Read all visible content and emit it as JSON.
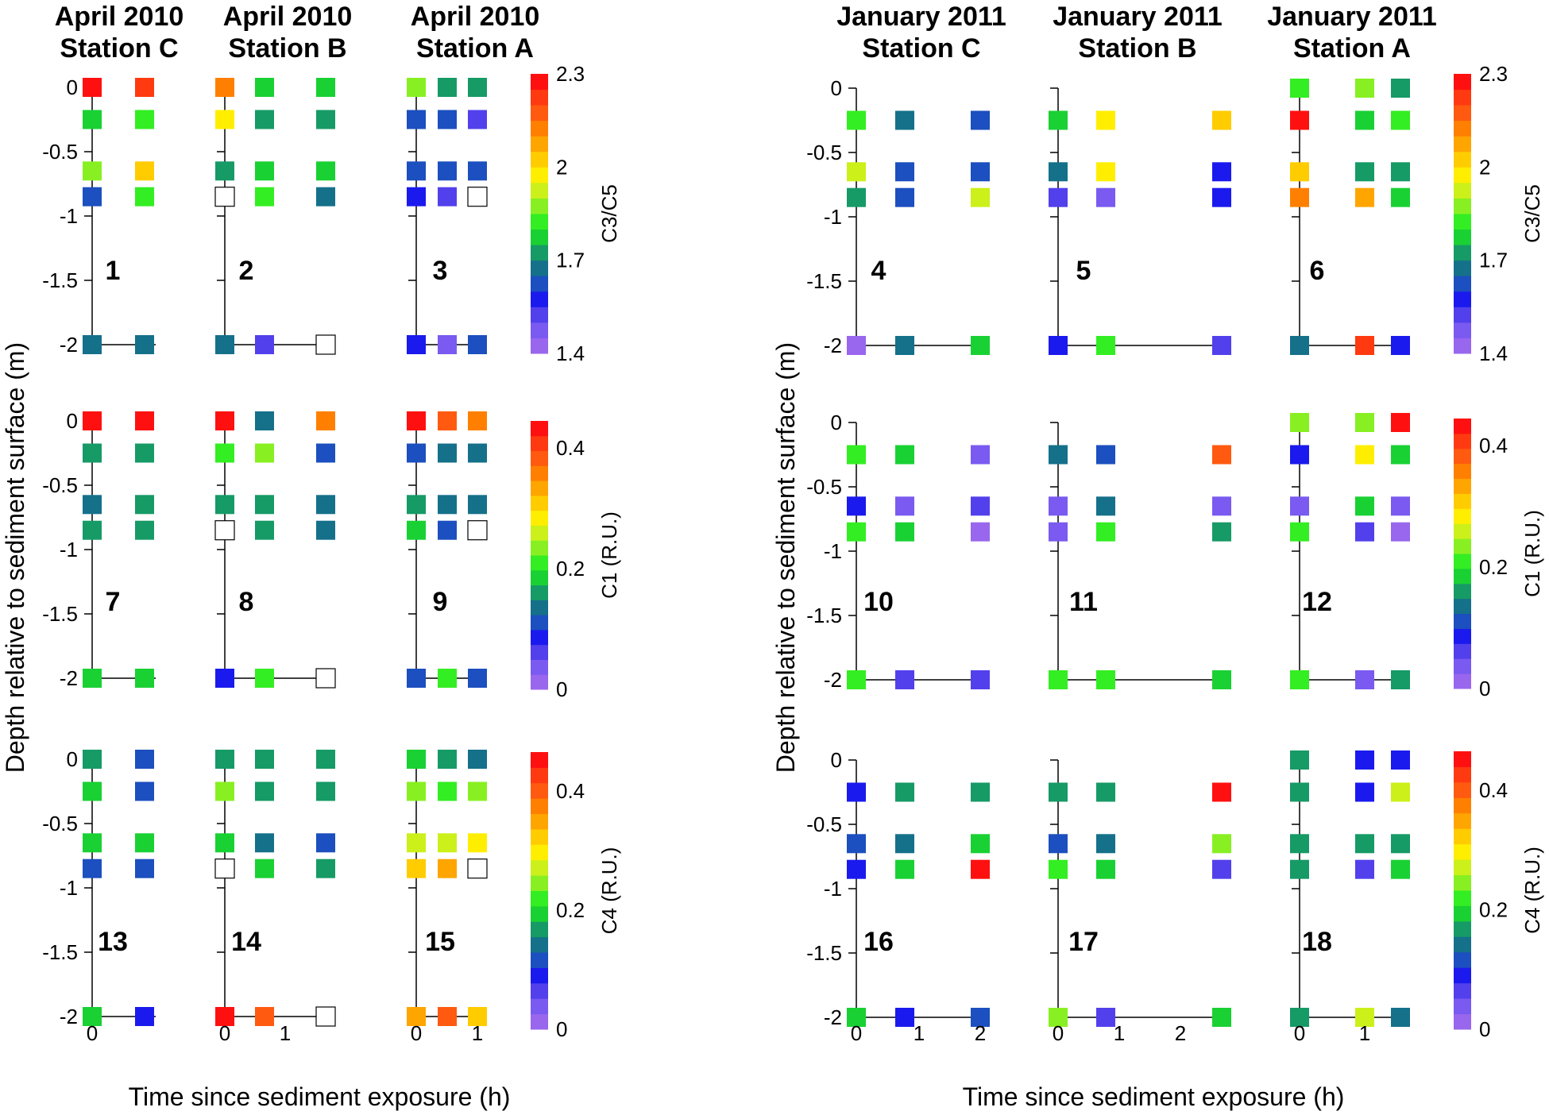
{
  "figure": {
    "ylabel_left": "Depth relative to sediment surface (m)",
    "ylabel_right": "Depth relative to sediment surface (m)",
    "xlabel_left": "Time since sediment exposure (h)",
    "xlabel_right": "Time since sediment exposure (h)"
  },
  "chart_data": {
    "type": "heatmap",
    "note": "18 panels of colour-coded squares; marker value is the colour-scale bin index (0 = lowest bin). null = open (no data) square.",
    "colormap_bins": [
      "#9966ee",
      "#7a5af0",
      "#5240ec",
      "#1a1aee",
      "#1c4fbf",
      "#15708a",
      "#169a66",
      "#19d133",
      "#33ee22",
      "#88f022",
      "#ccf01a",
      "#ffee00",
      "#ffcc00",
      "#ffa500",
      "#ff8000",
      "#ff5a10",
      "#ff3a10",
      "#ff1010"
    ],
    "column_headers": [
      {
        "line1": "April 2010",
        "line2": "Station C"
      },
      {
        "line1": "April 2010",
        "line2": "Station B"
      },
      {
        "line1": "April 2010",
        "line2": "Station A"
      },
      {
        "line1": "January 2011",
        "line2": "Station C"
      },
      {
        "line1": "January 2011",
        "line2": "Station B"
      },
      {
        "line1": "January 2011",
        "line2": "Station A"
      }
    ],
    "y_ticks": [
      "0",
      "-0.5",
      "-1",
      "-1.5",
      "-2"
    ],
    "ylim": [
      -2,
      0
    ],
    "depths": [
      0,
      -0.25,
      -0.65,
      -0.85,
      -2
    ],
    "x_tick_labels": [
      [
        "0"
      ],
      [
        "0",
        "1"
      ],
      [
        "0",
        "1"
      ],
      [
        "0",
        "1",
        "2"
      ],
      [
        "0",
        "1",
        "2"
      ],
      [
        "0",
        "1"
      ]
    ],
    "colorbars": [
      {
        "label": "C3/C5",
        "ticks": [
          "2.3",
          "2",
          "1.7",
          "1.4"
        ]
      },
      {
        "label": "C1 (R.U.)",
        "ticks": [
          "0.4",
          "0.2",
          "0"
        ]
      },
      {
        "label": "C4 (R.U.)",
        "ticks": [
          "0.4",
          "0.2",
          "0"
        ]
      }
    ],
    "panels": [
      {
        "label": "1",
        "title": "April 2010 Station C",
        "metric": "C3/C5",
        "values": [
          [
            17,
            null,
            16
          ],
          [
            7,
            null,
            8
          ],
          [
            9,
            null,
            12
          ],
          [
            4,
            null,
            8
          ],
          [
            5,
            null,
            5
          ]
        ]
      },
      {
        "label": "2",
        "title": "April 2010 Station B",
        "metric": "C3/C5",
        "values": [
          [
            14,
            7,
            7
          ],
          [
            11,
            6,
            6
          ],
          [
            6,
            7,
            7
          ],
          [
            null,
            8,
            5
          ],
          [
            5,
            2,
            null
          ]
        ]
      },
      {
        "label": "3",
        "title": "April 2010 Station A",
        "metric": "C3/C5",
        "values": [
          [
            9,
            6,
            6
          ],
          [
            4,
            4,
            2
          ],
          [
            4,
            4,
            4
          ],
          [
            3,
            2,
            null
          ],
          [
            3,
            1,
            4
          ]
        ]
      },
      {
        "label": "4",
        "title": "January 2011 Station C",
        "metric": "C3/C5",
        "values": [
          [
            null,
            null,
            null
          ],
          [
            8,
            5,
            4
          ],
          [
            10,
            4,
            4
          ],
          [
            6,
            4,
            10
          ],
          [
            0,
            5,
            7
          ]
        ]
      },
      {
        "label": "5",
        "title": "January 2011 Station B",
        "metric": "C3/C5",
        "values": [
          [
            null,
            null,
            null
          ],
          [
            7,
            11,
            12
          ],
          [
            5,
            11,
            3
          ],
          [
            2,
            1,
            3
          ],
          [
            3,
            8,
            2
          ]
        ]
      },
      {
        "label": "6",
        "title": "January 2011 Station A",
        "metric": "C3/C5",
        "values": [
          [
            8,
            9,
            6
          ],
          [
            17,
            7,
            8
          ],
          [
            12,
            6,
            6
          ],
          [
            14,
            13,
            7
          ],
          [
            5,
            16,
            3
          ]
        ]
      },
      {
        "label": "7",
        "title": "April 2010 Station C",
        "metric": "C1 (R.U.)",
        "values": [
          [
            17,
            null,
            17
          ],
          [
            6,
            null,
            6
          ],
          [
            5,
            null,
            6
          ],
          [
            6,
            null,
            6
          ],
          [
            7,
            null,
            7
          ]
        ]
      },
      {
        "label": "8",
        "title": "April 2010 Station B",
        "metric": "C1 (R.U.)",
        "values": [
          [
            17,
            5,
            14
          ],
          [
            8,
            9,
            4
          ],
          [
            6,
            6,
            5
          ],
          [
            null,
            6,
            5
          ],
          [
            3,
            8,
            null
          ]
        ]
      },
      {
        "label": "9",
        "title": "April 2010 Station A",
        "metric": "C1 (R.U.)",
        "values": [
          [
            17,
            15,
            14
          ],
          [
            4,
            5,
            5
          ],
          [
            6,
            5,
            5
          ],
          [
            7,
            4,
            null
          ],
          [
            4,
            8,
            4
          ]
        ]
      },
      {
        "label": "10",
        "title": "January 2011 Station C",
        "metric": "C1 (R.U.)",
        "values": [
          [
            null,
            null,
            null
          ],
          [
            8,
            7,
            1
          ],
          [
            3,
            1,
            2
          ],
          [
            8,
            7,
            0
          ],
          [
            8,
            2,
            2
          ]
        ]
      },
      {
        "label": "11",
        "title": "January 2011 Station B",
        "metric": "C1 (R.U.)",
        "values": [
          [
            null,
            null,
            null
          ],
          [
            5,
            4,
            15
          ],
          [
            1,
            5,
            1
          ],
          [
            1,
            8,
            6
          ],
          [
            8,
            8,
            7
          ]
        ]
      },
      {
        "label": "12",
        "title": "January 2011 Station A",
        "metric": "C1 (R.U.)",
        "values": [
          [
            9,
            9,
            17
          ],
          [
            3,
            11,
            7
          ],
          [
            1,
            7,
            1
          ],
          [
            8,
            2,
            0
          ],
          [
            8,
            1,
            6
          ]
        ]
      },
      {
        "label": "13",
        "title": "April 2010 Station C",
        "metric": "C4 (R.U.)",
        "values": [
          [
            6,
            null,
            4
          ],
          [
            7,
            null,
            4
          ],
          [
            7,
            null,
            7
          ],
          [
            4,
            null,
            4
          ],
          [
            7,
            null,
            3
          ]
        ]
      },
      {
        "label": "14",
        "title": "April 2010 Station B",
        "metric": "C4 (R.U.)",
        "values": [
          [
            6,
            6,
            6
          ],
          [
            9,
            6,
            6
          ],
          [
            7,
            5,
            4
          ],
          [
            null,
            7,
            6
          ],
          [
            17,
            15,
            null
          ]
        ]
      },
      {
        "label": "15",
        "title": "April 2010 Station A",
        "metric": "C4 (R.U.)",
        "values": [
          [
            7,
            6,
            5
          ],
          [
            9,
            8,
            9
          ],
          [
            10,
            10,
            11
          ],
          [
            12,
            13,
            null
          ],
          [
            13,
            15,
            12
          ]
        ]
      },
      {
        "label": "16",
        "title": "January 2011 Station C",
        "metric": "C4 (R.U.)",
        "values": [
          [
            null,
            null,
            null
          ],
          [
            3,
            6,
            6
          ],
          [
            4,
            5,
            7
          ],
          [
            3,
            7,
            17
          ],
          [
            7,
            3,
            4
          ]
        ]
      },
      {
        "label": "17",
        "title": "January 2011 Station B",
        "metric": "C4 (R.U.)",
        "values": [
          [
            null,
            null,
            null
          ],
          [
            6,
            6,
            17
          ],
          [
            4,
            5,
            9
          ],
          [
            8,
            7,
            2
          ],
          [
            9,
            2,
            7
          ]
        ]
      },
      {
        "label": "18",
        "title": "January 2011 Station A",
        "metric": "C4 (R.U.)",
        "values": [
          [
            6,
            3,
            3
          ],
          [
            6,
            3,
            10
          ],
          [
            6,
            6,
            6
          ],
          [
            6,
            2,
            7
          ],
          [
            6,
            10,
            5
          ]
        ]
      }
    ]
  }
}
